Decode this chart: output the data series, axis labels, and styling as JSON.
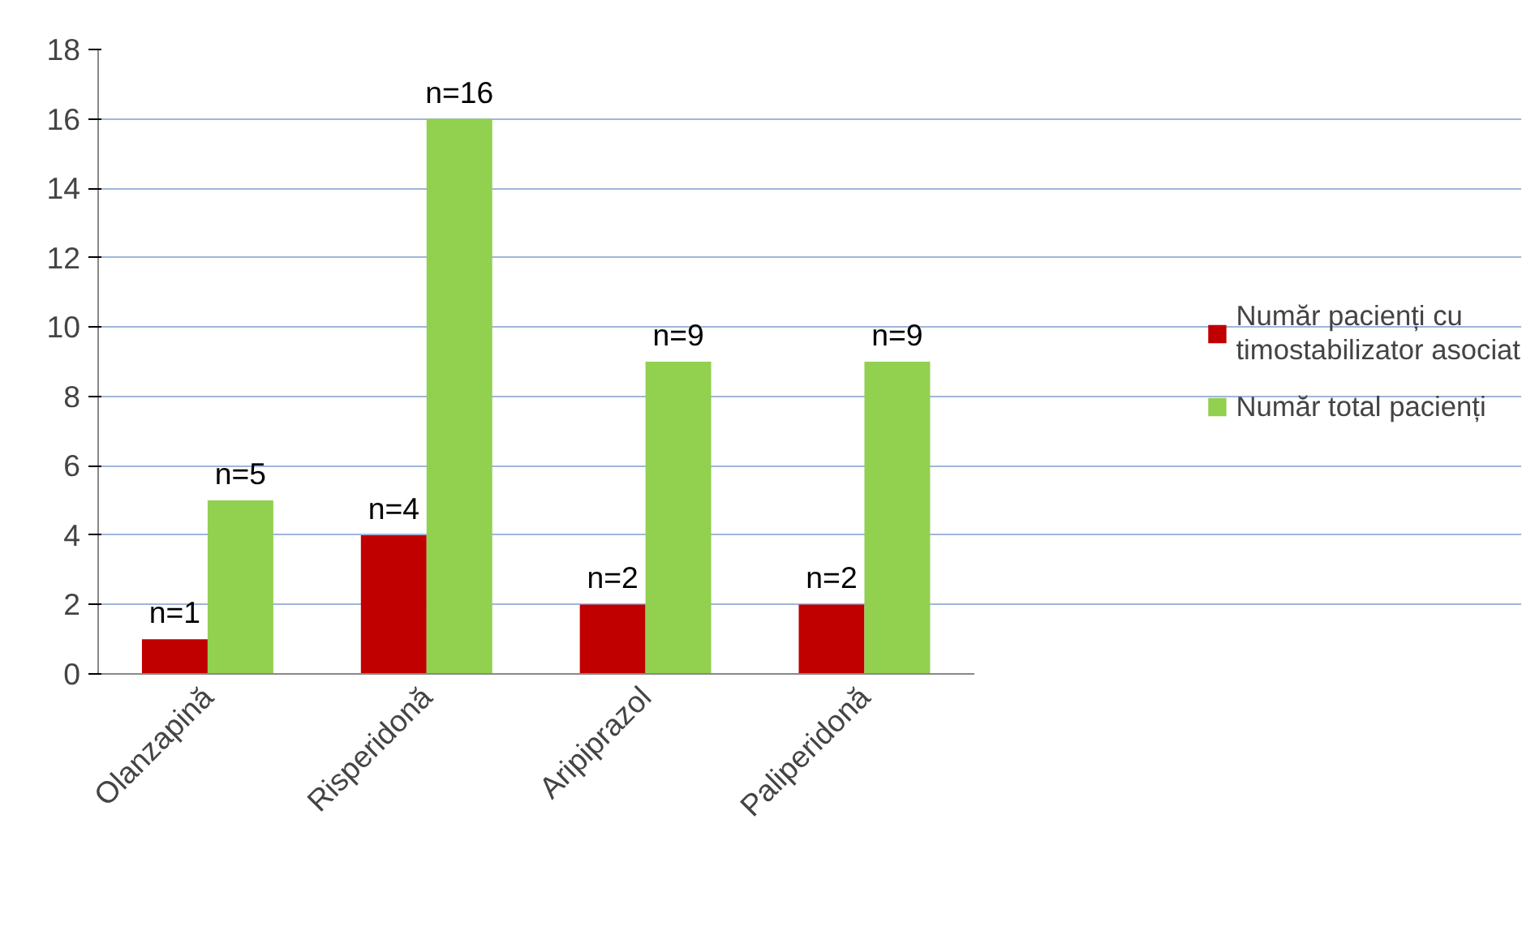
{
  "chart_data": {
    "type": "bar",
    "categories": [
      "Olanzapină",
      "Risperidonă",
      "Aripiprazol",
      "Paliperidonă"
    ],
    "series": [
      {
        "name": "Număr pacienți cu timostabilizator asociat",
        "color": "#c00000",
        "values": [
          1,
          4,
          2,
          2
        ],
        "value_labels": [
          "n=1",
          "n=4",
          "n=2",
          "n=2"
        ]
      },
      {
        "name": "Număr total pacienți",
        "color": "#92d050",
        "values": [
          5,
          16,
          9,
          9
        ],
        "value_labels": [
          "n=5",
          "n=16",
          "n=9",
          "n=9"
        ]
      }
    ],
    "ylim": [
      0,
      18
    ],
    "yticks": [
      0,
      2,
      4,
      6,
      8,
      10,
      12,
      14,
      16,
      18
    ],
    "grid": "y",
    "legend": "right"
  }
}
